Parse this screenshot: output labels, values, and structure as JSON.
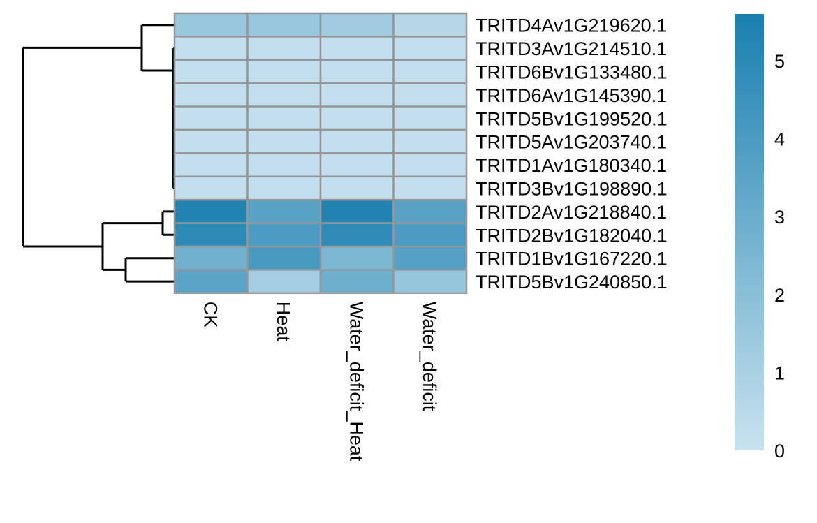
{
  "chart_data": {
    "type": "heatmap",
    "columns": [
      "CK",
      "Heat",
      "Water_deficit_Heat",
      "Water_deficit"
    ],
    "rows": [
      "TRITD4Av1G219620.1",
      "TRITD3Av1G214510.1",
      "TRITD6Bv1G133480.1",
      "TRITD6Av1G145390.1",
      "TRITD5Bv1G199520.1",
      "TRITD5Av1G203740.1",
      "TRITD1Av1G180340.1",
      "TRITD3Bv1G198890.1",
      "TRITD2Av1G218840.1",
      "TRITD2Bv1G182040.1",
      "TRITD1Bv1G167220.1",
      "TRITD5Bv1G240850.1"
    ],
    "values": [
      [
        1.5,
        1.5,
        1.3,
        0.6
      ],
      [
        0.2,
        0.2,
        0.2,
        0.2
      ],
      [
        0.2,
        0.2,
        0.2,
        0.2
      ],
      [
        0.2,
        0.2,
        0.2,
        0.2
      ],
      [
        0.2,
        0.2,
        0.2,
        0.2
      ],
      [
        0.2,
        0.2,
        0.2,
        0.2
      ],
      [
        0.2,
        0.2,
        0.2,
        0.2
      ],
      [
        0.2,
        0.2,
        0.2,
        0.2
      ],
      [
        5.4,
        3.6,
        5.4,
        3.6
      ],
      [
        5.0,
        4.0,
        4.9,
        4.0
      ],
      [
        2.8,
        4.1,
        2.4,
        3.7
      ],
      [
        3.5,
        1.2,
        2.9,
        1.6
      ]
    ],
    "colorbar": {
      "ticks": [
        0,
        1,
        2,
        3,
        4,
        5
      ],
      "min": 0,
      "max": 5.6,
      "color_low": "#c8e2ee",
      "color_high": "#1a7fb0"
    },
    "cell_border_color": "#969696",
    "dendrogram_color": "#000000"
  }
}
